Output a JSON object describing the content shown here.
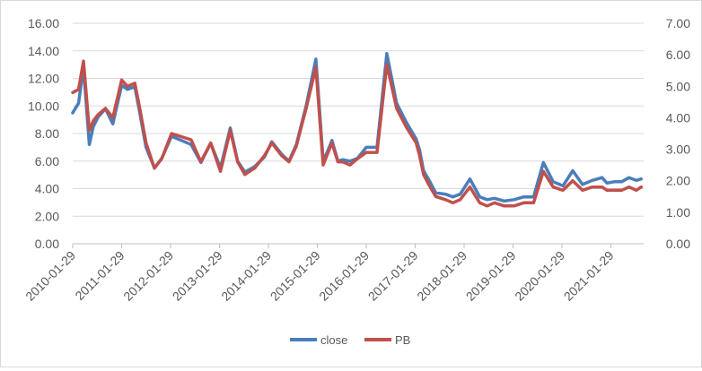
{
  "chart_data": {
    "type": "line",
    "title": "",
    "xlabel": "",
    "ylabel": "",
    "x_tick_labels": [
      "2010-01-29",
      "2011-01-29",
      "2012-01-29",
      "2013-01-29",
      "2014-01-29",
      "2015-01-29",
      "2016-01-29",
      "2017-01-29",
      "2018-01-29",
      "2019-01-29",
      "2020-01-29",
      "2021-01-29"
    ],
    "y_left": {
      "ticks": [
        "0.00",
        "2.00",
        "4.00",
        "6.00",
        "8.00",
        "10.00",
        "12.00",
        "14.00",
        "16.00"
      ],
      "lim": [
        0,
        16
      ]
    },
    "y_right": {
      "ticks": [
        "0.00",
        "1.00",
        "2.00",
        "3.00",
        "4.00",
        "5.00",
        "6.00",
        "7.00"
      ],
      "lim": [
        0,
        7
      ]
    },
    "grid": true,
    "legend_position": "bottom",
    "x": [
      2010.08,
      2010.2,
      2010.3,
      2010.42,
      2010.5,
      2010.6,
      2010.75,
      2010.9,
      2011.08,
      2011.2,
      2011.35,
      2011.45,
      2011.58,
      2011.75,
      2011.9,
      2012.1,
      2012.3,
      2012.5,
      2012.7,
      2012.9,
      2013.1,
      2013.3,
      2013.45,
      2013.6,
      2013.8,
      2014.0,
      2014.15,
      2014.35,
      2014.5,
      2014.65,
      2014.85,
      2015.05,
      2015.2,
      2015.3,
      2015.38,
      2015.5,
      2015.6,
      2015.75,
      2015.9,
      2016.08,
      2016.3,
      2016.5,
      2016.7,
      2016.9,
      2017.1,
      2017.17,
      2017.25,
      2017.35,
      2017.5,
      2017.7,
      2017.85,
      2018.0,
      2018.2,
      2018.4,
      2018.55,
      2018.7,
      2018.9,
      2019.1,
      2019.3,
      2019.5,
      2019.7,
      2019.9,
      2020.1,
      2020.3,
      2020.5,
      2020.7,
      2020.9,
      2021.0,
      2021.15,
      2021.3,
      2021.45,
      2021.6,
      2021.7
    ],
    "series": [
      {
        "name": "close",
        "axis": "left",
        "color": "#4a7ebb",
        "values": [
          9.5,
          10.2,
          12.8,
          7.2,
          8.5,
          9.2,
          9.8,
          8.7,
          11.5,
          11.2,
          11.4,
          9.5,
          7.0,
          5.5,
          6.2,
          7.8,
          7.5,
          7.2,
          5.9,
          7.3,
          5.5,
          8.4,
          6.0,
          5.2,
          5.6,
          6.3,
          7.4,
          6.5,
          6.0,
          7.2,
          10.0,
          13.4,
          6.0,
          6.8,
          7.5,
          6.0,
          6.1,
          6.0,
          6.2,
          7.0,
          7.0,
          13.8,
          10.2,
          8.8,
          7.6,
          6.8,
          5.3,
          4.7,
          3.7,
          3.6,
          3.4,
          3.6,
          4.7,
          3.4,
          3.2,
          3.3,
          3.1,
          3.2,
          3.4,
          3.4,
          5.9,
          4.5,
          4.2,
          5.3,
          4.3,
          4.6,
          4.8,
          4.4,
          4.5,
          4.5,
          4.8,
          4.6,
          4.7
        ]
      },
      {
        "name": "PB",
        "axis": "right",
        "color": "#c0504d",
        "values": [
          4.8,
          4.9,
          5.8,
          3.6,
          3.9,
          4.1,
          4.3,
          4.0,
          5.2,
          5.0,
          5.1,
          4.3,
          3.2,
          2.4,
          2.7,
          3.5,
          3.4,
          3.3,
          2.6,
          3.2,
          2.3,
          3.6,
          2.6,
          2.2,
          2.4,
          2.8,
          3.2,
          2.8,
          2.6,
          3.1,
          4.3,
          5.6,
          2.5,
          2.9,
          3.2,
          2.6,
          2.6,
          2.5,
          2.7,
          2.9,
          2.9,
          5.7,
          4.3,
          3.7,
          3.2,
          2.8,
          2.2,
          1.9,
          1.5,
          1.4,
          1.3,
          1.4,
          1.8,
          1.3,
          1.2,
          1.3,
          1.2,
          1.2,
          1.3,
          1.3,
          2.3,
          1.8,
          1.7,
          2.0,
          1.7,
          1.8,
          1.8,
          1.7,
          1.7,
          1.7,
          1.8,
          1.7,
          1.8
        ]
      }
    ]
  }
}
